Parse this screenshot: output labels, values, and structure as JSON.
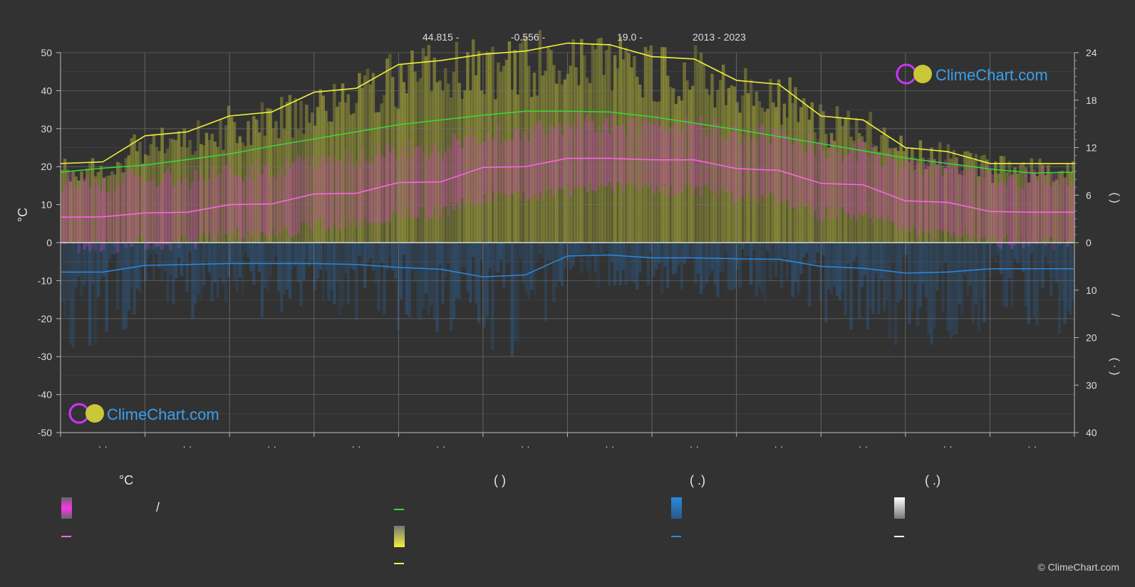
{
  "header": {
    "lat": "44.815 -",
    "lon": "-0.556 -",
    "elev": "19.0 -",
    "years": "2013 - 2023"
  },
  "axes": {
    "left_unit": "°C",
    "right_top_paren": "(   )",
    "right_bottom_paren": "(  ·  )",
    "right_slash": "/"
  },
  "legend": {
    "col1_header": "°C",
    "col1_slash": "/",
    "col2_header": "(           )",
    "col3_header": "(   .)",
    "col4_header": "(   .)"
  },
  "brand": {
    "logo_text": "ClimeChart.com",
    "copyright": "© ClimeChart.com"
  },
  "colors": {
    "background": "#323232",
    "daylight": "#33dd33",
    "sunshine": "#f0f03c",
    "temp_mean": "#ff66e8",
    "precip": "#2a8ae0",
    "snow": "#ffffff",
    "brand_blue": "#3aa0ee"
  },
  "chart_data": {
    "type": "line",
    "x_ticks": [
      "· ·",
      "· ·",
      "· ·",
      "· ·",
      "· ·",
      "· ·",
      "· ·",
      "· ·",
      "· ·",
      "· ·",
      "· ·",
      "· ·"
    ],
    "left_axis": {
      "ylim": [
        -50,
        50
      ],
      "ticks": [
        "50",
        "40",
        "30",
        "20",
        "10",
        "0",
        "-10",
        "-20",
        "-30",
        "-40",
        "-50"
      ]
    },
    "right_axis_top": {
      "ylim": [
        0,
        24
      ],
      "ticks": [
        "24",
        "18",
        "12",
        "6",
        "0"
      ]
    },
    "right_axis_bottom": {
      "ylim": [
        0,
        40
      ],
      "ticks": [
        "10",
        "20",
        "30",
        "40"
      ]
    },
    "grid": true,
    "x": [
      0,
      0.5,
      1,
      1.5,
      2,
      2.5,
      3,
      3.5,
      4,
      4.5,
      5,
      5.5,
      6,
      6.5,
      7,
      7.5,
      8,
      8.5,
      9,
      9.5,
      10,
      10.5,
      11,
      11.5,
      12
    ],
    "series": [
      {
        "values": [
          8.9,
          9.4,
          9.8,
          10.5,
          11.2,
          12.2,
          13.1,
          14.0,
          14.9,
          15.5,
          16.1,
          16.6,
          16.6,
          16.5,
          15.9,
          15.1,
          14.3,
          13.4,
          12.5,
          11.6,
          10.7,
          10.0,
          9.3,
          8.8,
          8.9
        ]
      },
      {
        "values": [
          10.0,
          10.2,
          13.5,
          14.0,
          16.0,
          16.5,
          19.0,
          19.5,
          22.5,
          23.0,
          23.8,
          24.2,
          25.2,
          25.0,
          23.5,
          23.2,
          20.5,
          20.0,
          16.0,
          15.5,
          12.0,
          11.5,
          10.0,
          10.0,
          10.0
        ]
      },
      {
        "values": [
          6.7,
          6.8,
          7.8,
          8.0,
          10.0,
          10.2,
          12.8,
          13.0,
          15.8,
          16.0,
          19.8,
          20.0,
          22.2,
          22.2,
          21.8,
          21.8,
          19.5,
          19.0,
          15.6,
          15.2,
          11.0,
          10.6,
          8.2,
          8.0,
          8.0
        ]
      },
      {
        "values": [
          6.2,
          6.2,
          4.8,
          4.6,
          4.4,
          4.4,
          4.4,
          4.6,
          5.2,
          5.6,
          7.2,
          6.8,
          2.8,
          2.6,
          3.2,
          3.2,
          3.4,
          3.5,
          5.0,
          5.4,
          6.4,
          6.2,
          5.5,
          5.5,
          5.5
        ]
      }
    ]
  }
}
